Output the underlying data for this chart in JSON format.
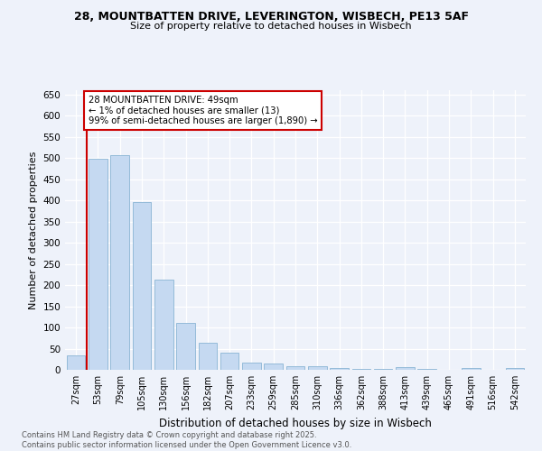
{
  "title_line1": "28, MOUNTBATTEN DRIVE, LEVERINGTON, WISBECH, PE13 5AF",
  "title_line2": "Size of property relative to detached houses in Wisbech",
  "xlabel": "Distribution of detached houses by size in Wisbech",
  "ylabel": "Number of detached properties",
  "categories": [
    "27sqm",
    "53sqm",
    "79sqm",
    "105sqm",
    "130sqm",
    "156sqm",
    "182sqm",
    "207sqm",
    "233sqm",
    "259sqm",
    "285sqm",
    "310sqm",
    "336sqm",
    "362sqm",
    "388sqm",
    "413sqm",
    "439sqm",
    "465sqm",
    "491sqm",
    "516sqm",
    "542sqm"
  ],
  "values": [
    35,
    499,
    507,
    396,
    212,
    110,
    63,
    40,
    17,
    14,
    9,
    8,
    5,
    3,
    2,
    7,
    2,
    1,
    4,
    1,
    4
  ],
  "bar_color": "#c5d9f1",
  "bar_edge_color": "#8ab4d4",
  "highlight_line_color": "#cc0000",
  "ylim": [
    0,
    660
  ],
  "yticks": [
    0,
    50,
    100,
    150,
    200,
    250,
    300,
    350,
    400,
    450,
    500,
    550,
    600,
    650
  ],
  "annotation_text": "28 MOUNTBATTEN DRIVE: 49sqm\n← 1% of detached houses are smaller (13)\n99% of semi-detached houses are larger (1,890) →",
  "annotation_box_color": "#ffffff",
  "annotation_box_edge_color": "#cc0000",
  "footer_text": "Contains HM Land Registry data © Crown copyright and database right 2025.\nContains public sector information licensed under the Open Government Licence v3.0.",
  "background_color": "#eef2fa",
  "grid_color": "#ffffff"
}
